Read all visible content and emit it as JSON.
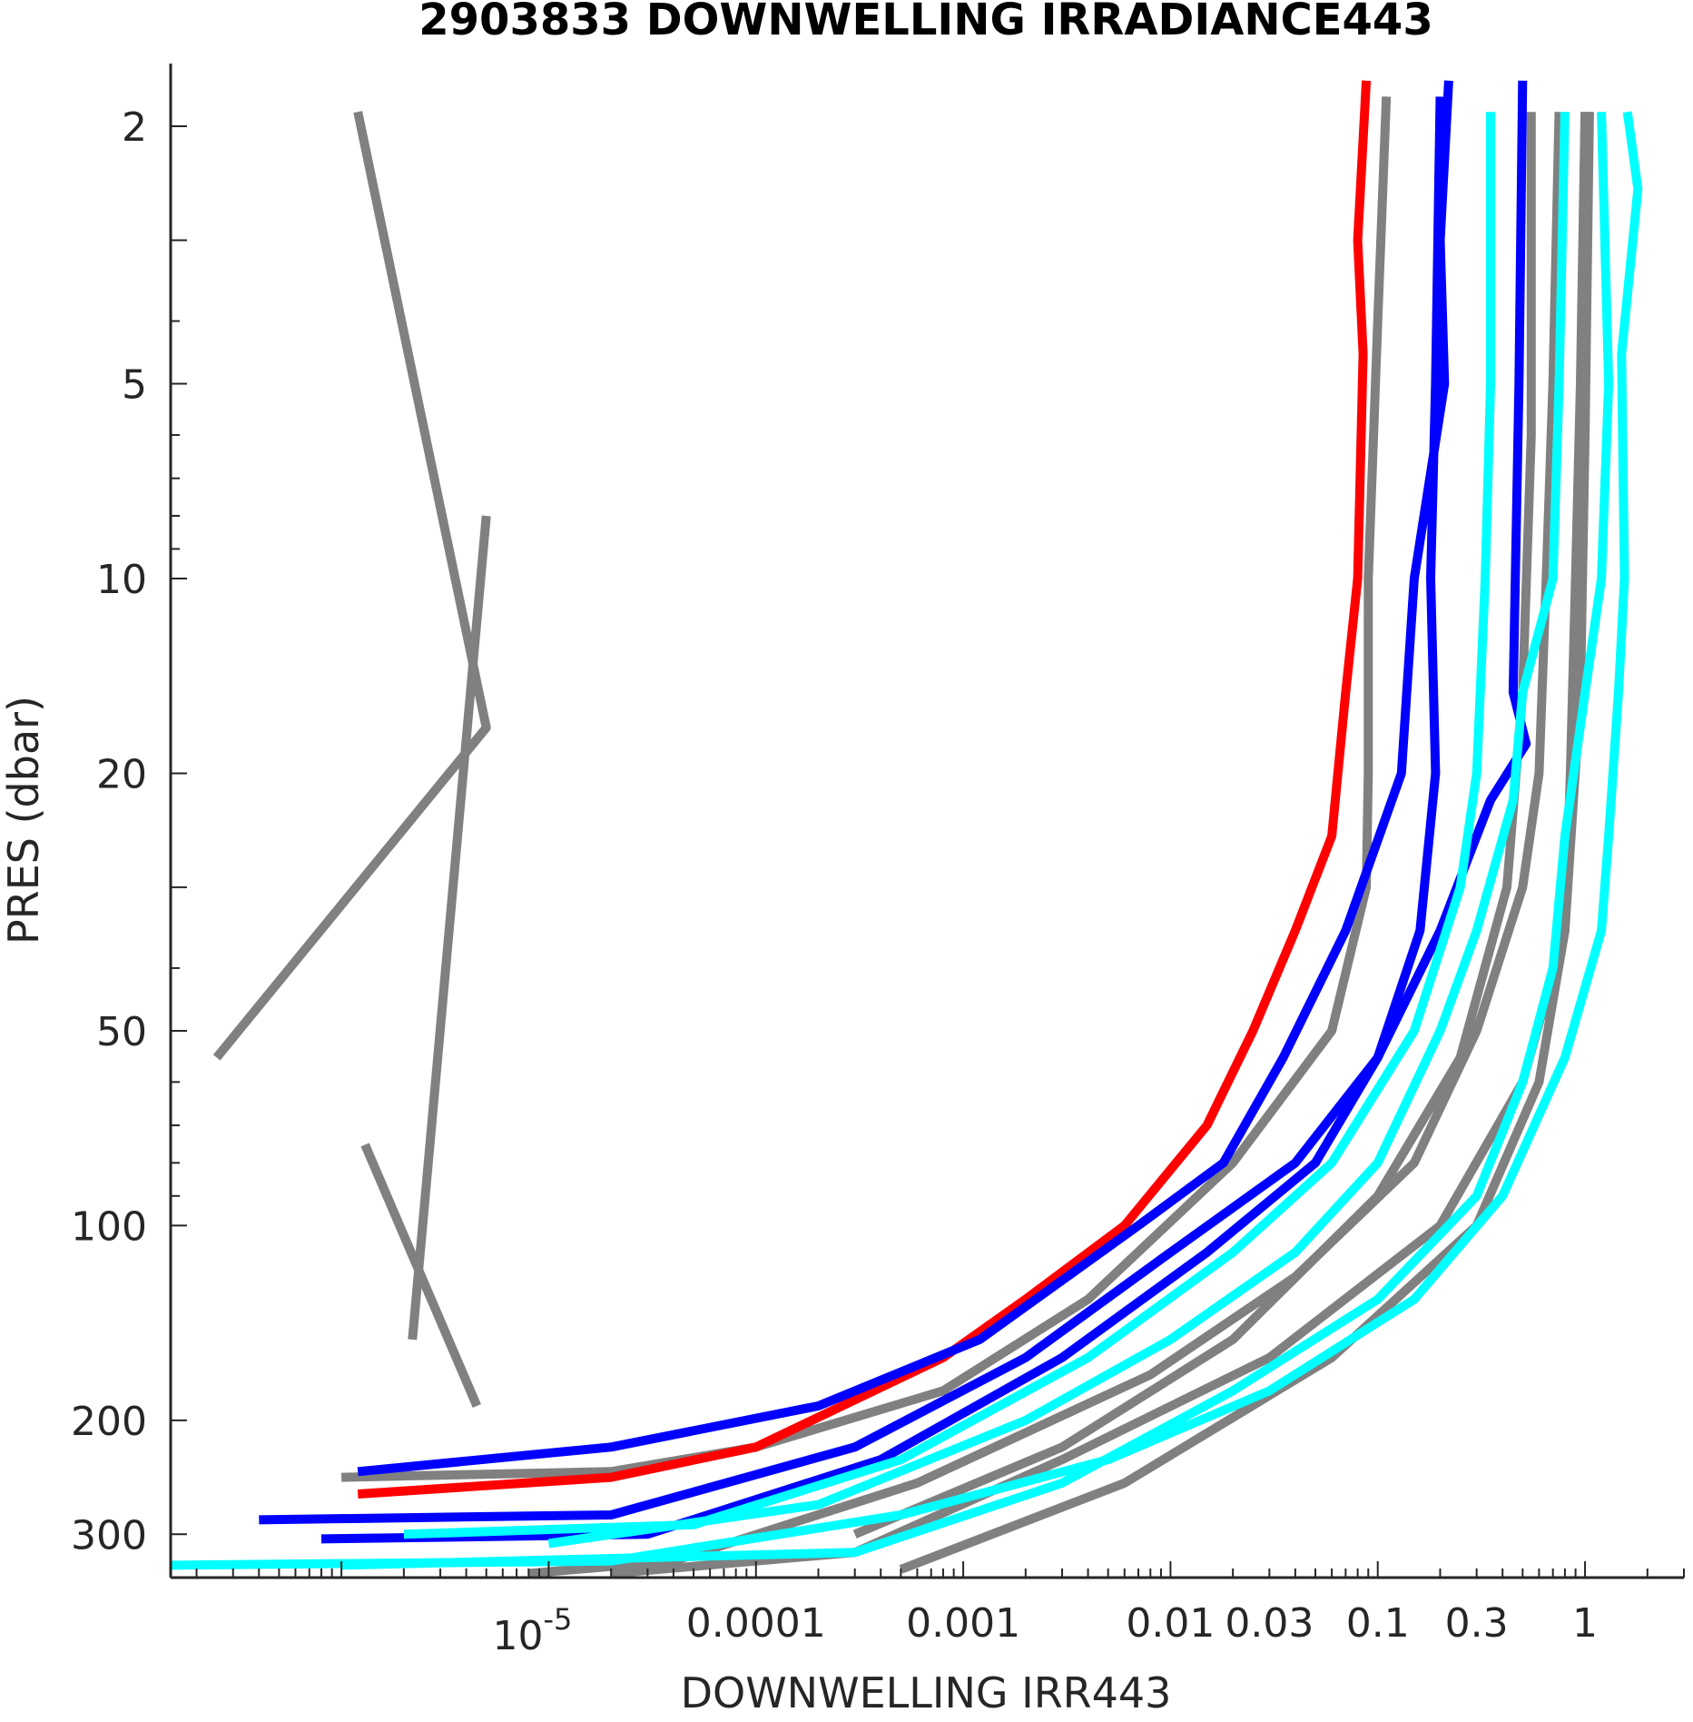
{
  "chart_data": {
    "type": "line",
    "title": "2903833  DOWNWELLING IRRADIANCE443",
    "xlabel": "DOWNWELLING IRR443",
    "ylabel": "PRES (dbar)",
    "x_scale": "log",
    "y_scale": "log",
    "y_reversed": true,
    "xlim": [
      1.5e-07,
      3
    ],
    "ylim": [
      1.6,
      350
    ],
    "x_ticks": [
      {
        "value": 1e-05,
        "label": "10",
        "exp": "-5"
      },
      {
        "value": 0.0001,
        "label": "0.0001"
      },
      {
        "value": 0.001,
        "label": "0.001"
      },
      {
        "value": 0.01,
        "label": "0.01"
      },
      {
        "value": 0.03,
        "label": "0.03"
      },
      {
        "value": 0.1,
        "label": "0.1"
      },
      {
        "value": 0.3,
        "label": "0.3"
      },
      {
        "value": 1,
        "label": "1"
      }
    ],
    "y_ticks": [
      {
        "value": 2,
        "label": "2"
      },
      {
        "value": 5,
        "label": "5"
      },
      {
        "value": 10,
        "label": "10"
      },
      {
        "value": 20,
        "label": "20"
      },
      {
        "value": 50,
        "label": "50"
      },
      {
        "value": 100,
        "label": "100"
      },
      {
        "value": 200,
        "label": "200"
      },
      {
        "value": 300,
        "label": "300"
      }
    ],
    "grid": false,
    "colors": {
      "gray": "#808080",
      "red": "#ff0000",
      "blue": "#0000ff",
      "cyan": "#00ffff"
    },
    "series": [
      {
        "color": "gray",
        "points": [
          [
            1.2e-06,
            1.9
          ],
          [
            5e-06,
            17
          ],
          [
            2.5e-07,
            55
          ]
        ]
      },
      {
        "color": "gray",
        "points": [
          [
            5e-06,
            8
          ],
          [
            2.2e-06,
            150
          ]
        ]
      },
      {
        "color": "gray",
        "points": [
          [
            1.3e-06,
            75
          ],
          [
            4.5e-06,
            190
          ]
        ]
      },
      {
        "color": "gray",
        "points": [
          [
            0.11,
            1.8
          ],
          [
            0.1,
            4
          ],
          [
            0.09,
            10
          ],
          [
            0.09,
            20
          ],
          [
            0.088,
            30
          ],
          [
            0.06,
            50
          ],
          [
            0.02,
            80
          ],
          [
            0.004,
            130
          ],
          [
            0.0008,
            180
          ],
          [
            0.0001,
            220
          ],
          [
            2e-05,
            240
          ],
          [
            1e-06,
            245
          ]
        ]
      },
      {
        "color": "gray",
        "points": [
          [
            0.75,
            1.9
          ],
          [
            0.7,
            5
          ],
          [
            0.65,
            10
          ],
          [
            0.6,
            20
          ],
          [
            0.5,
            30
          ],
          [
            0.3,
            50
          ],
          [
            0.15,
            80
          ],
          [
            0.04,
            120
          ],
          [
            0.008,
            170
          ],
          [
            0.0006,
            250
          ],
          [
            4e-05,
            330
          ],
          [
            8e-06,
            345
          ]
        ]
      },
      {
        "color": "gray",
        "points": [
          [
            1.0,
            1.9
          ],
          [
            0.95,
            5
          ],
          [
            0.9,
            10
          ],
          [
            0.85,
            20
          ],
          [
            0.8,
            35
          ],
          [
            0.5,
            60
          ],
          [
            0.2,
            100
          ],
          [
            0.03,
            160
          ],
          [
            0.003,
            230
          ],
          [
            0.0003,
            320
          ],
          [
            2e-05,
            345
          ]
        ]
      },
      {
        "color": "gray",
        "points": [
          [
            0.55,
            1.9
          ],
          [
            0.55,
            6
          ],
          [
            0.5,
            15
          ],
          [
            0.42,
            30
          ],
          [
            0.25,
            55
          ],
          [
            0.1,
            90
          ],
          [
            0.02,
            150
          ],
          [
            0.003,
            220
          ],
          [
            0.0003,
            300
          ]
        ]
      },
      {
        "color": "gray",
        "points": [
          [
            1.05,
            1.9
          ],
          [
            1.0,
            6
          ],
          [
            0.95,
            15
          ],
          [
            0.8,
            35
          ],
          [
            0.6,
            60
          ],
          [
            0.3,
            100
          ],
          [
            0.06,
            160
          ],
          [
            0.006,
            250
          ],
          [
            0.0005,
            340
          ]
        ]
      },
      {
        "color": "red",
        "points": [
          [
            0.088,
            1.7
          ],
          [
            0.08,
            3
          ],
          [
            0.085,
            4.5
          ],
          [
            0.08,
            10
          ],
          [
            0.07,
            15
          ],
          [
            0.06,
            25
          ],
          [
            0.04,
            35
          ],
          [
            0.025,
            50
          ],
          [
            0.015,
            70
          ],
          [
            0.006,
            100
          ],
          [
            0.002,
            130
          ],
          [
            0.0008,
            160
          ],
          [
            0.0001,
            220
          ],
          [
            2e-05,
            245
          ],
          [
            1.2e-06,
            260
          ]
        ]
      },
      {
        "color": "blue",
        "points": [
          [
            0.22,
            1.7
          ],
          [
            0.2,
            3
          ],
          [
            0.21,
            5
          ],
          [
            0.15,
            10
          ],
          [
            0.13,
            20
          ],
          [
            0.07,
            35
          ],
          [
            0.035,
            55
          ],
          [
            0.018,
            80
          ],
          [
            0.007,
            100
          ],
          [
            0.0012,
            150
          ],
          [
            0.0002,
            190
          ],
          [
            2e-05,
            220
          ],
          [
            1.2e-06,
            240
          ]
        ]
      },
      {
        "color": "blue",
        "points": [
          [
            0.5,
            1.7
          ],
          [
            0.48,
            5
          ],
          [
            0.45,
            15
          ],
          [
            0.52,
            18
          ],
          [
            0.35,
            22
          ],
          [
            0.2,
            35
          ],
          [
            0.1,
            55
          ],
          [
            0.04,
            80
          ],
          [
            0.01,
            110
          ],
          [
            0.002,
            160
          ],
          [
            0.0003,
            220
          ],
          [
            2e-05,
            280
          ],
          [
            4e-07,
            285
          ]
        ]
      },
      {
        "color": "blue",
        "points": [
          [
            0.2,
            1.8
          ],
          [
            0.19,
            5
          ],
          [
            0.18,
            10
          ],
          [
            0.19,
            20
          ],
          [
            0.16,
            35
          ],
          [
            0.1,
            55
          ],
          [
            0.05,
            80
          ],
          [
            0.015,
            110
          ],
          [
            0.003,
            160
          ],
          [
            0.0004,
            230
          ],
          [
            3e-05,
            300
          ],
          [
            8e-07,
            305
          ]
        ]
      },
      {
        "color": "cyan",
        "points": [
          [
            1.6,
            1.9
          ],
          [
            1.8,
            2.5
          ],
          [
            1.5,
            4.5
          ],
          [
            1.55,
            10
          ],
          [
            1.45,
            15
          ],
          [
            1.3,
            25
          ],
          [
            1.2,
            35
          ],
          [
            0.8,
            55
          ],
          [
            0.4,
            90
          ],
          [
            0.15,
            130
          ],
          [
            0.03,
            180
          ],
          [
            0.005,
            230
          ],
          [
            0.0005,
            280
          ],
          [
            2e-05,
            330
          ],
          [
            1.5e-07,
            335
          ]
        ]
      },
      {
        "color": "cyan",
        "points": [
          [
            0.35,
            1.9
          ],
          [
            0.35,
            5
          ],
          [
            0.33,
            10
          ],
          [
            0.3,
            20
          ],
          [
            0.25,
            30
          ],
          [
            0.15,
            50
          ],
          [
            0.06,
            80
          ],
          [
            0.02,
            110
          ],
          [
            0.004,
            160
          ],
          [
            0.0005,
            230
          ],
          [
            5e-05,
            290
          ],
          [
            2e-06,
            300
          ]
        ]
      },
      {
        "color": "cyan",
        "points": [
          [
            1.2,
            1.9
          ],
          [
            1.3,
            5
          ],
          [
            1.2,
            10
          ],
          [
            1.0,
            15
          ],
          [
            0.8,
            25
          ],
          [
            0.7,
            40
          ],
          [
            0.5,
            60
          ],
          [
            0.3,
            90
          ],
          [
            0.1,
            130
          ],
          [
            0.02,
            180
          ],
          [
            0.003,
            250
          ],
          [
            0.0003,
            320
          ],
          [
            1e-06,
            335
          ]
        ]
      },
      {
        "color": "cyan",
        "points": [
          [
            0.8,
            1.9
          ],
          [
            0.75,
            5
          ],
          [
            0.7,
            10
          ],
          [
            0.5,
            15
          ],
          [
            0.45,
            22
          ],
          [
            0.3,
            35
          ],
          [
            0.2,
            50
          ],
          [
            0.1,
            80
          ],
          [
            0.04,
            110
          ],
          [
            0.01,
            150
          ],
          [
            0.002,
            200
          ],
          [
            0.0002,
            270
          ],
          [
            1e-05,
            310
          ]
        ]
      }
    ]
  }
}
